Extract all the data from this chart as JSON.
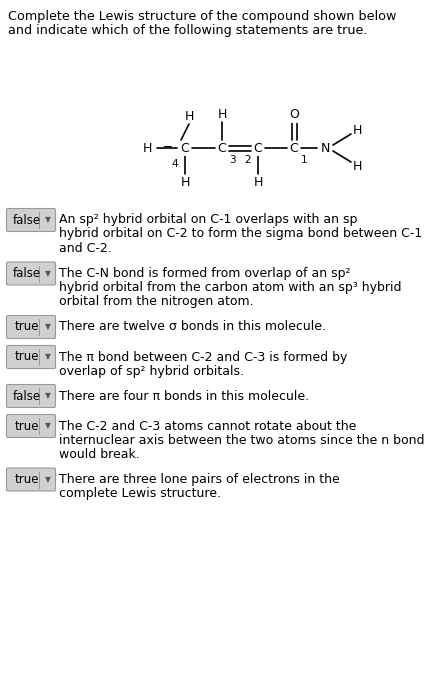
{
  "title_line1": "Complete the Lewis structure of the compound shown below",
  "title_line2": "and indicate which of the following statements are true.",
  "background_color": "#ffffff",
  "text_color": "#000000",
  "figsize": [
    4.4,
    6.89
  ],
  "dpi": 100,
  "statements": [
    {
      "label": "false",
      "lines": [
        "An sp² hybrid orbital on C-1 overlaps with an sp",
        "hybrid orbital on C-2 to form the sigma bond between C-1",
        "and C-2."
      ]
    },
    {
      "label": "false",
      "lines": [
        "The C-N bond is formed from overlap of an sp²",
        "hybrid orbital from the carbon atom with an sp³ hybrid",
        "orbital from the nitrogen atom."
      ]
    },
    {
      "label": "true",
      "lines": [
        "There are twelve σ bonds in this molecule."
      ]
    },
    {
      "label": "true",
      "lines": [
        "The π bond between C-2 and C-3 is formed by",
        "overlap of sp² hybrid orbitals."
      ]
    },
    {
      "label": "false",
      "lines": [
        "There are four π bonds in this molecule."
      ]
    },
    {
      "label": "true",
      "lines": [
        "The C-2 and C-3 atoms cannot rotate about the",
        "internuclear axis between the two atoms since the n bond",
        "would break."
      ]
    },
    {
      "label": "true",
      "lines": [
        "There are three lone pairs of electrons in the",
        "complete Lewis structure."
      ]
    }
  ]
}
